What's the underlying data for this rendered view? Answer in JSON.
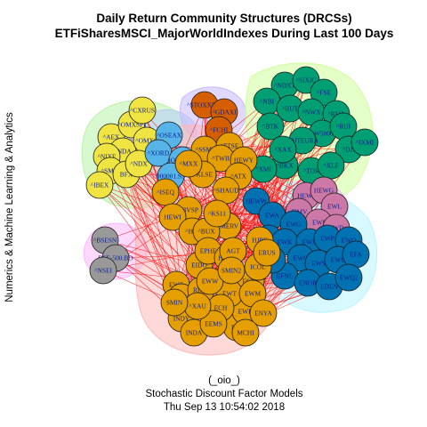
{
  "title_line1": "Daily Return Community Structures (DRCSs)",
  "title_line2": "ETFiSharesMSCI_MajorWorldIndexes During Last 100 Days",
  "y_axis_label": "Numerics & Machine Learning & Analytics",
  "caption_line1": "(_oio_)",
  "caption_line2": "Stochastic Discount Factor Models",
  "caption_line3": "Thu Sep 13 10:54:02 2018",
  "colors": {
    "orange_community": "#e69f00",
    "green_community": "#009e73",
    "blue_community": "#0072b2",
    "yellow_community": "#f0e442",
    "dark_orange_community": "#d55e00",
    "pink_community": "#cc79a7",
    "sky_community": "#56b4e9",
    "gray_community": "#999999",
    "inter_edge": "#ff0000"
  },
  "communities": [
    {
      "name": "yellow",
      "color": "#f0e442",
      "hull": "#b8f2a8",
      "nodes": [
        "^AEX",
        "^OMXSPI",
        "^CXRUS",
        "^NDA",
        "^OMXC",
        "^NIXE",
        "^SMSI",
        "^IBEX",
        "BFX",
        "^NDX"
      ]
    },
    {
      "name": "sky",
      "color": "#56b4e9",
      "hull": "#b8ccff",
      "nodes": [
        "^OSEAX",
        "^XORD",
        "^OMXH25",
        "000001.SS"
      ]
    },
    {
      "name": "dark_orange",
      "color": "#d55e00",
      "hull": "#c9b8ff",
      "nodes": [
        "^STOXX50E",
        "^GDAXI",
        "^FCHI"
      ]
    },
    {
      "name": "green",
      "color": "#009e73",
      "hull": "#d0ff9a",
      "nodes": [
        "^NDXT",
        "^SIXIC",
        "^FSE",
        "^NBI",
        "^RUT",
        "^BTK",
        "^NWX",
        "^RUA",
        "^W5000",
        "^RUI",
        "^DJTEURA",
        "^DJI",
        "^IXMI",
        "^BKX",
        "^TOR",
        "^XLF",
        "^XMI",
        "^XAX"
      ]
    },
    {
      "name": "pink",
      "color": "#cc79a7",
      "hull": "#e6b8ff",
      "nodes": [
        "HEWJ",
        "HEWG",
        "EWL",
        "JPMV",
        "EWI",
        "EWD"
      ]
    },
    {
      "name": "blue",
      "color": "#0072b2",
      "hull": "#b8f4ff",
      "nodes": [
        "HEWW",
        "EWA",
        "EWG",
        "EWJ",
        "EWK",
        "EWN",
        "EWP",
        "EWO",
        "EWQ",
        "EWS",
        "EWU",
        "EFA",
        "EFNL",
        "ENOR",
        "EDEN",
        "EIRL",
        "EWQ2"
      ]
    },
    {
      "name": "gray",
      "color": "#999999",
      "hull": "#ffb8ff",
      "nodes": [
        "^BSESN",
        "BSE-500.BO",
        "^NSEI"
      ]
    },
    {
      "name": "orange",
      "color": "#e69f00",
      "hull": "#ffb8b8",
      "nodes": [
        "^SSMI",
        "^FTSE",
        "^TWII",
        "HEWY",
        "^ATX",
        "^KLSE",
        "^SHAUD",
        "^MXX",
        "^ISEQ",
        "^BVSP",
        "HEWI",
        "^HSI",
        "^MERV",
        "^BUX",
        "^KS11",
        "EWZ",
        "EWZS",
        "RING",
        "INDY",
        "INDA",
        "EIDO",
        "EPHE",
        "ECNS",
        "FXI",
        "EWH",
        "EWT",
        "EWW",
        "ECH",
        "EEMS",
        "EWM",
        "ENYA",
        "MCHI",
        "HEWC",
        "^XAU",
        "SMIN",
        "AGT",
        "HJPX",
        "ICOL",
        "ERUS",
        "SMIN2"
      ]
    }
  ]
}
